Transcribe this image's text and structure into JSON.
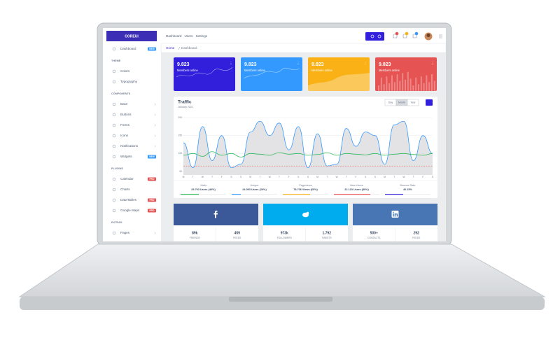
{
  "sidebar": {
    "brand": "COREUI",
    "sections": [
      {
        "items": [
          {
            "label": "Dashboard",
            "badge": "NEW",
            "badge_color": "#39f"
          }
        ]
      },
      {
        "title": "THEME",
        "items": [
          {
            "label": "Colors"
          },
          {
            "label": "Typography"
          }
        ]
      },
      {
        "title": "COMPONENTS",
        "items": [
          {
            "label": "Base",
            "expandable": true
          },
          {
            "label": "Buttons",
            "expandable": true
          },
          {
            "label": "Forms",
            "expandable": true
          },
          {
            "label": "Icons",
            "expandable": true
          },
          {
            "label": "Notifications",
            "expandable": true
          },
          {
            "label": "Widgets",
            "badge": "NEW",
            "badge_color": "#39f"
          }
        ]
      },
      {
        "title": "PLUGINS",
        "items": [
          {
            "label": "Calendar",
            "badge": "PRO",
            "badge_color": "#e55353"
          },
          {
            "label": "Charts"
          },
          {
            "label": "DataTables",
            "badge": "PRO",
            "badge_color": "#e55353"
          },
          {
            "label": "Google Maps",
            "badge": "PRO",
            "badge_color": "#e55353"
          }
        ]
      },
      {
        "title": "EXTRAS",
        "items": [
          {
            "label": "Pages",
            "expandable": true
          }
        ]
      }
    ]
  },
  "header": {
    "nav": [
      "Dashboard",
      "Users",
      "Settings"
    ],
    "breadcrumb": [
      "Home",
      "Dashboard"
    ]
  },
  "cards": [
    {
      "value": "9.823",
      "label": "Members online",
      "color": "#321fdb"
    },
    {
      "value": "9.823",
      "label": "Members online",
      "color": "#39f"
    },
    {
      "value": "9.823",
      "label": "Members online",
      "color": "#f9b115"
    },
    {
      "value": "9.823",
      "label": "Members online",
      "color": "#e55353"
    }
  ],
  "traffic": {
    "title": "Traffic",
    "subtitle": "January 2021",
    "buttons": [
      "Day",
      "Month",
      "Year"
    ],
    "active_button": 1,
    "chart": {
      "type": "line",
      "categories": [
        "M",
        "T",
        "W",
        "T",
        "F",
        "S",
        "S",
        "M",
        "T",
        "W",
        "T",
        "F",
        "S",
        "S",
        "M",
        "T",
        "W",
        "T",
        "F",
        "S",
        "S",
        "M",
        "T",
        "W",
        "T",
        "F",
        "S"
      ],
      "series": [
        {
          "color": "#39f",
          "fill": "#dcdcdf",
          "values": [
            130,
            60,
            175,
            80,
            150,
            60,
            70,
            160,
            190,
            150,
            185,
            110,
            175,
            60,
            155,
            65,
            70,
            170,
            120,
            160,
            150,
            70,
            180,
            190,
            80,
            150,
            100
          ]
        },
        {
          "color": "#2eb85c",
          "values": [
            95,
            100,
            92,
            105,
            95,
            100,
            90,
            100,
            98,
            95,
            102,
            98,
            100,
            95,
            97,
            102,
            95,
            100,
            98,
            96,
            100,
            95,
            98,
            100,
            97,
            95,
            100
          ]
        }
      ],
      "target": {
        "value": 65,
        "color": "#e55353"
      },
      "ylim": [
        40,
        210
      ],
      "yticks": [
        50,
        100,
        150,
        200
      ]
    },
    "stats": [
      {
        "label": "Visits",
        "value": "29.703 Users (40%)",
        "progress": 40,
        "color": "#2eb85c"
      },
      {
        "label": "Unique",
        "value": "24.093 Users (20%)",
        "progress": 20,
        "color": "#39f"
      },
      {
        "label": "Pageviews",
        "value": "78.706 Views (60%)",
        "progress": 60,
        "color": "#f9b115"
      },
      {
        "label": "New Users",
        "value": "22.123 Users (80%)",
        "progress": 80,
        "color": "#e55353"
      },
      {
        "label": "Bounce Rate",
        "value": "40.15%",
        "progress": 40,
        "color": "#321fdb"
      }
    ]
  },
  "social": [
    {
      "color": "#3b5998",
      "stats": [
        {
          "value": "89k",
          "label": "FRIENDS"
        },
        {
          "value": "459",
          "label": "FEEDS"
        }
      ]
    },
    {
      "color": "#00aced",
      "stats": [
        {
          "value": "973k",
          "label": "FOLLOWERS"
        },
        {
          "value": "1.792",
          "label": "TWEETS"
        }
      ]
    },
    {
      "color": "#4875b4",
      "stats": [
        {
          "value": "500+",
          "label": "CONTACTS"
        },
        {
          "value": "292",
          "label": "FEEDS"
        }
      ]
    }
  ]
}
